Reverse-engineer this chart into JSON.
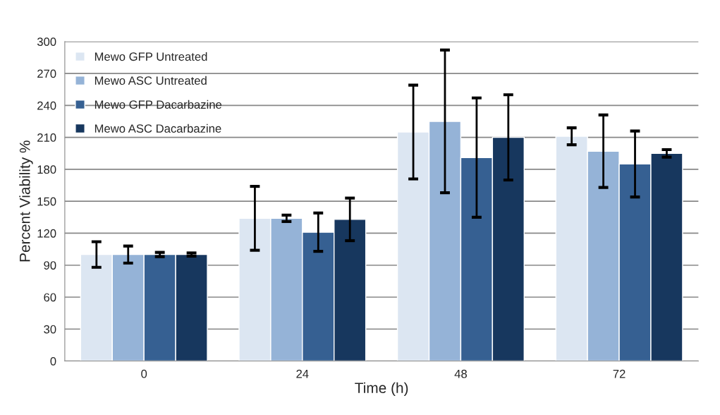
{
  "chart_data": {
    "type": "bar",
    "xlabel": "Time (h)",
    "ylabel": "Percent Viability %",
    "categories": [
      "0",
      "24",
      "48",
      "72"
    ],
    "series": [
      {
        "name": "Mewo GFP Untreated",
        "color": "#dce6f2",
        "values": [
          100,
          134,
          215,
          211
        ],
        "errors": [
          12,
          30,
          44,
          8
        ]
      },
      {
        "name": "Mewo ASC Untreated",
        "color": "#95b3d7",
        "values": [
          100,
          134,
          225,
          197
        ],
        "errors": [
          8,
          3,
          67,
          34
        ]
      },
      {
        "name": "Mewo GFP Dacarbazine",
        "color": "#366092",
        "values": [
          100,
          121,
          191,
          185
        ],
        "errors": [
          2,
          18,
          56,
          31
        ]
      },
      {
        "name": "Mewo ASC Dacarbazine",
        "color": "#17375e",
        "values": [
          100,
          133,
          210,
          195
        ],
        "errors": [
          1.5,
          20,
          40,
          3.5
        ]
      }
    ],
    "ylim": [
      0,
      300
    ],
    "yticks": [
      0,
      30,
      60,
      90,
      120,
      150,
      180,
      210,
      240,
      270,
      300
    ],
    "grid": "y",
    "legend": "top left"
  }
}
